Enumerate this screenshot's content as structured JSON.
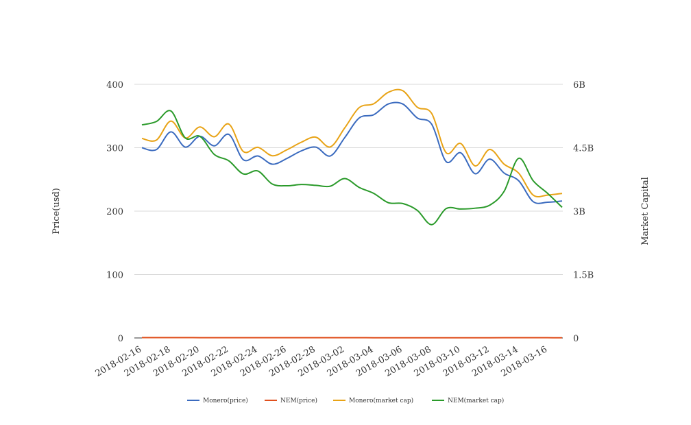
{
  "chart_data": {
    "type": "line",
    "title": "",
    "ylabel_left": "Price(usd)",
    "ylabel_right": "Market Capital",
    "x": [
      "2018-02-16",
      "2018-02-17",
      "2018-02-18",
      "2018-02-19",
      "2018-02-20",
      "2018-02-21",
      "2018-02-22",
      "2018-02-23",
      "2018-02-24",
      "2018-02-25",
      "2018-02-26",
      "2018-02-27",
      "2018-02-28",
      "2018-03-01",
      "2018-03-02",
      "2018-03-03",
      "2018-03-04",
      "2018-03-05",
      "2018-03-06",
      "2018-03-07",
      "2018-03-08",
      "2018-03-09",
      "2018-03-10",
      "2018-03-11",
      "2018-03-12",
      "2018-03-13",
      "2018-03-14",
      "2018-03-15",
      "2018-03-16",
      "2018-03-17"
    ],
    "x_tick_labels": [
      "2018-02-16",
      "2018-02-18",
      "2018-02-20",
      "2018-02-22",
      "2018-02-24",
      "2018-02-26",
      "2018-02-28",
      "2018-03-02",
      "2018-03-04",
      "2018-03-06",
      "2018-03-08",
      "2018-03-10",
      "2018-03-12",
      "2018-03-14",
      "2018-03-16"
    ],
    "y_left": {
      "min": 0,
      "max": 400,
      "ticks": [
        0,
        100,
        200,
        300,
        400
      ],
      "tick_labels": [
        "0",
        "100",
        "200",
        "300",
        "400"
      ]
    },
    "y_right": {
      "min": 0,
      "max": 6000000000,
      "ticks": [
        0,
        1500000000,
        3000000000,
        4500000000,
        6000000000
      ],
      "tick_labels": [
        "0",
        "1.5B",
        "3B",
        "4.5B",
        "6B"
      ]
    },
    "grid": true,
    "legend_position": "bottom",
    "series": [
      {
        "name": "Monero(price)",
        "axis": "left",
        "color": "#3b6bbf",
        "values": [
          300,
          297,
          325,
          301,
          318,
          303,
          321,
          281,
          287,
          274,
          283,
          295,
          301,
          287,
          316,
          347,
          352,
          369,
          369,
          347,
          337,
          278,
          292,
          259,
          282,
          260,
          248,
          215,
          214,
          216
        ]
      },
      {
        "name": "NEM(price)",
        "axis": "left",
        "color": "#e0501e",
        "values": [
          0.48,
          0.49,
          0.52,
          0.48,
          0.47,
          0.44,
          0.42,
          0.39,
          0.39,
          0.36,
          0.36,
          0.36,
          0.36,
          0.36,
          0.37,
          0.35,
          0.33,
          0.32,
          0.32,
          0.3,
          0.27,
          0.3,
          0.3,
          0.3,
          0.31,
          0.35,
          0.42,
          0.37,
          0.34,
          0.31
        ]
      },
      {
        "name": "Monero(market cap)",
        "axis": "right",
        "color": "#e8a316",
        "values": [
          4720000000,
          4680000000,
          5130000000,
          4730000000,
          4990000000,
          4760000000,
          5060000000,
          4410000000,
          4510000000,
          4310000000,
          4450000000,
          4630000000,
          4750000000,
          4520000000,
          4970000000,
          5450000000,
          5540000000,
          5810000000,
          5850000000,
          5460000000,
          5310000000,
          4380000000,
          4600000000,
          4070000000,
          4460000000,
          4110000000,
          3900000000,
          3380000000,
          3380000000,
          3420000000
        ]
      },
      {
        "name": "NEM(market cap)",
        "axis": "right",
        "color": "#2a9a2a",
        "values": [
          5040000000,
          5120000000,
          5370000000,
          4730000000,
          4770000000,
          4340000000,
          4190000000,
          3880000000,
          3950000000,
          3640000000,
          3600000000,
          3630000000,
          3610000000,
          3590000000,
          3770000000,
          3560000000,
          3420000000,
          3200000000,
          3180000000,
          3020000000,
          2680000000,
          3060000000,
          3050000000,
          3070000000,
          3140000000,
          3470000000,
          4250000000,
          3720000000,
          3420000000,
          3090000000
        ]
      }
    ]
  }
}
